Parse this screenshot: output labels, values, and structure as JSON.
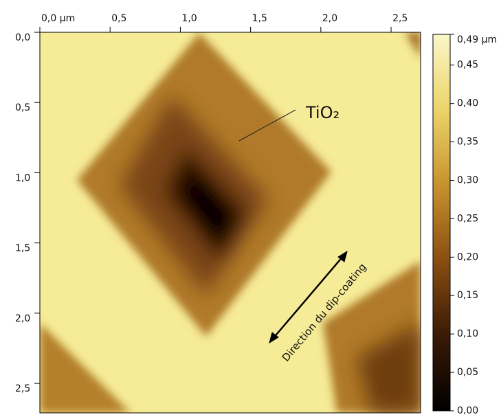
{
  "chart_data": {
    "type": "image",
    "xlim": [
      0,
      2.71
    ],
    "ylim": [
      0,
      2.71
    ],
    "xticks": [
      {
        "value": 0,
        "label": "0,0 µm"
      },
      {
        "value": 0.5,
        "label": "0,5"
      },
      {
        "value": 1,
        "label": "1,0"
      },
      {
        "value": 1.5,
        "label": "1,5"
      },
      {
        "value": 2,
        "label": "2,0"
      },
      {
        "value": 2.5,
        "label": "2,5"
      }
    ],
    "yticks": [
      {
        "value": 0,
        "label": "0,0"
      },
      {
        "value": 0.5,
        "label": "0,5"
      },
      {
        "value": 1,
        "label": "1,0"
      },
      {
        "value": 1.5,
        "label": "1,5"
      },
      {
        "value": 2,
        "label": "2,0"
      },
      {
        "value": 2.5,
        "label": "2,5"
      }
    ],
    "colorbar": {
      "zlim": [
        0,
        0.49
      ],
      "ticks": [
        {
          "value": 0.49,
          "label": "0,49 µm"
        },
        {
          "value": 0.45,
          "label": "0,45"
        },
        {
          "value": 0.4,
          "label": "0,40"
        },
        {
          "value": 0.35,
          "label": "0,35"
        },
        {
          "value": 0.3,
          "label": "0,30"
        },
        {
          "value": 0.25,
          "label": "0,25"
        },
        {
          "value": 0.2,
          "label": "0,20"
        },
        {
          "value": 0.15,
          "label": "0,15"
        },
        {
          "value": 0.1,
          "label": "0,10"
        },
        {
          "value": 0.05,
          "label": "0,05"
        },
        {
          "value": 0,
          "label": "0,00"
        }
      ],
      "colormap": [
        "#000000",
        "#3a1a05",
        "#8a4e12",
        "#c8922e",
        "#ecd46a",
        "#fbf7c8"
      ]
    },
    "annotations": [
      {
        "text": "TiO₂"
      },
      {
        "text": "Direction du dip-coating"
      }
    ]
  }
}
